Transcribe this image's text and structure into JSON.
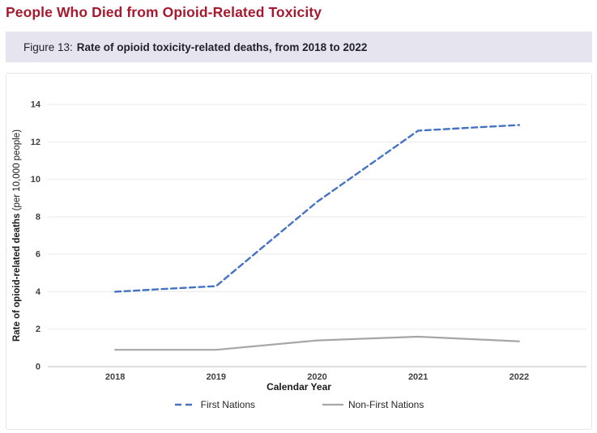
{
  "page": {
    "title": "People Who Died from Opioid-Related Toxicity",
    "figure_label": "Figure 13:",
    "figure_caption": "Rate of opioid toxicity-related deaths, from 2018 to 2022"
  },
  "colors": {
    "title_red": "#A6192E",
    "caption_bg": "#E6E5EF",
    "first_nations_blue": "#4472C4",
    "non_first_nations_gray": "#A6A6A6",
    "gridline": "#E9E9E9",
    "axis_line": "#BFBFBF",
    "axis_text": "#404040"
  },
  "chart_data": {
    "type": "line",
    "title": "",
    "categories": [
      "2018",
      "2019",
      "2020",
      "2021",
      "2022"
    ],
    "series": [
      {
        "name": "First Nations",
        "values": [
          4.0,
          4.3,
          8.8,
          12.6,
          12.9
        ],
        "color": "#4472C4",
        "dash": true
      },
      {
        "name": "Non-First Nations",
        "values": [
          0.9,
          0.9,
          1.4,
          1.6,
          1.35
        ],
        "color": "#A6A6A6",
        "dash": false
      }
    ],
    "xlabel": "Calendar Year",
    "ylabel_bold": "Rate of opioid-related deaths",
    "ylabel_normal": "(per 10,000 people)",
    "ylim": [
      0,
      14
    ],
    "ytick_step": 2,
    "grid": true,
    "legend_position": "bottom"
  }
}
